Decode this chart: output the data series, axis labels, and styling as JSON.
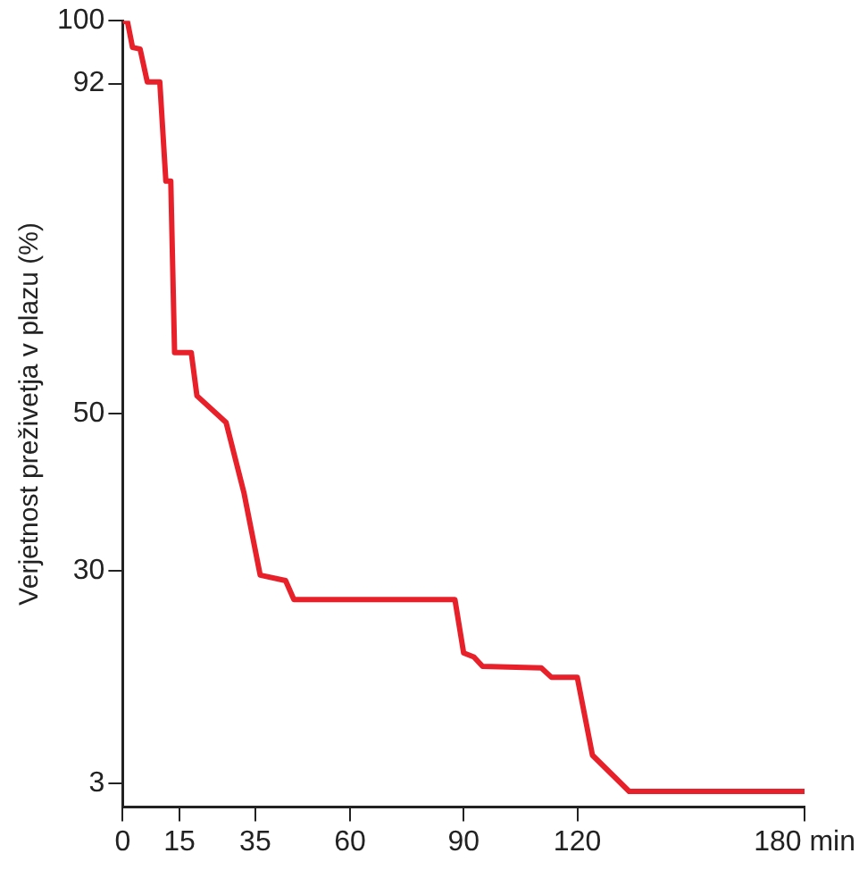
{
  "chart_data": {
    "type": "line",
    "ylabel": "Verjetnost preživetja v plazu (%)",
    "x": [
      0,
      1.3,
      2.6,
      4.6,
      6.5,
      9.8,
      11.4,
      12.7,
      13.7,
      18.1,
      19.6,
      27.3,
      32,
      36.3,
      43,
      45.2,
      87.7,
      90,
      92.7,
      95,
      110.5,
      113.2,
      120,
      124,
      133.7,
      180
    ],
    "series": [
      {
        "color": "#e8202a",
        "values": [
          100,
          99.8,
          96.6,
          96.4,
          92.2,
          92.2,
          79.6,
          79.6,
          57.8,
          57.8,
          52.3,
          48.9,
          40,
          29.5,
          28.8,
          26.4,
          26.4,
          19.6,
          19.1,
          17.9,
          17.7,
          16.5,
          16.5,
          6.6,
          2,
          2
        ]
      }
    ],
    "xlim": [
      0,
      180
    ],
    "xticks": [
      0,
      15,
      35,
      60,
      90,
      120,
      {
        "value": 180,
        "label": "180 min"
      }
    ],
    "ylim": [
      0,
      100
    ],
    "yticks": [
      3,
      30,
      50,
      92,
      100
    ],
    "grid": false,
    "legend": false,
    "marker": "none",
    "line_style": "solid"
  }
}
